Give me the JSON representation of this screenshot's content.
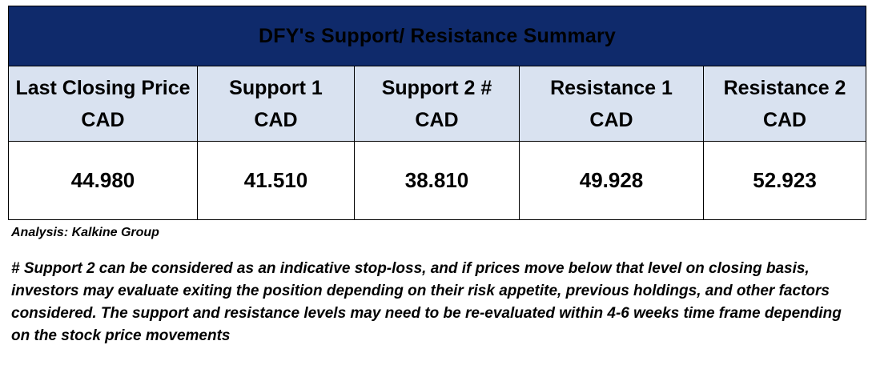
{
  "table": {
    "title": "DFY's Support/  Resistance Summary",
    "headers": [
      {
        "line1": "Last Closing Price",
        "line2": "CAD"
      },
      {
        "line1": "Support 1",
        "line2": "CAD"
      },
      {
        "line1": "Support 2 #",
        "line2": "CAD"
      },
      {
        "line1": "Resistance 1",
        "line2": "CAD"
      },
      {
        "line1": "Resistance 2",
        "line2": "CAD"
      }
    ],
    "values": [
      "44.980",
      "41.510",
      "38.810",
      "49.928",
      "52.923"
    ]
  },
  "colors": {
    "title_bg": "#0f2a6b",
    "header_bg": "#d9e2f0"
  },
  "analysis": "Analysis: Kalkine Group",
  "note": "# Support 2 can be considered as an indicative stop-loss, and if prices move below that level on closing basis, investors may evaluate exiting the position depending on their risk appetite, previous holdings, and other factors considered. The support and resistance levels may need to be re-evaluated within 4-6 weeks time frame depending on the stock price movements"
}
